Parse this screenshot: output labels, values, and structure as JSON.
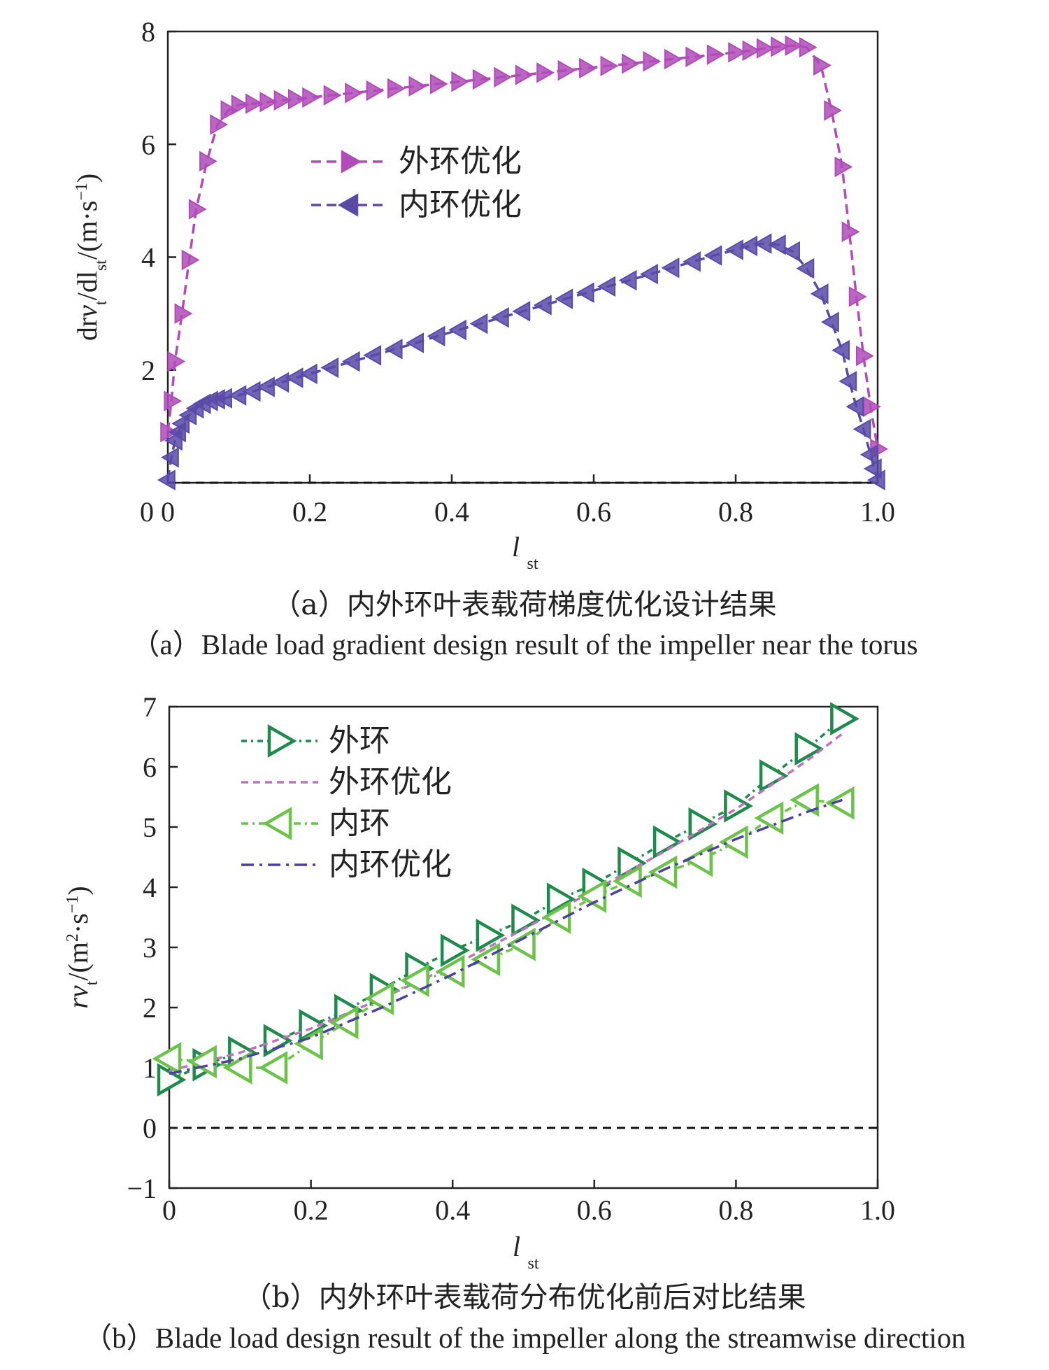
{
  "chart_data": [
    {
      "type": "line",
      "caption_zh": "（a）内外环叶表载荷梯度优化设计结果",
      "caption_en": "（a）Blade load gradient design result of the impeller near the torus",
      "xlabel": "l",
      "xlabel_sub": "st",
      "ylabel": "drv",
      "ylabel_parts": [
        "dr",
        "v",
        "t",
        "/dl",
        "st",
        "/(m·s",
        "−1",
        ")"
      ],
      "xlim": [
        0,
        1.0
      ],
      "ylim": [
        0,
        8
      ],
      "xticks": [
        "0",
        "0.2",
        "0.4",
        "0.6",
        "0.8",
        "1.0"
      ],
      "xtick_values": [
        0,
        0.2,
        0.4,
        0.6,
        0.8,
        1.0
      ],
      "yticks": [
        "2",
        "4",
        "6",
        "8"
      ],
      "ytick_values": [
        2,
        4,
        6,
        8
      ],
      "legend_position": "top-left",
      "series": [
        {
          "name": "外环优化",
          "color": "#b04bb8",
          "marker": "triangle-right",
          "x": [
            0.0,
            0.005,
            0.01,
            0.02,
            0.03,
            0.04,
            0.055,
            0.07,
            0.085,
            0.1,
            0.12,
            0.14,
            0.16,
            0.18,
            0.2,
            0.23,
            0.26,
            0.29,
            0.32,
            0.35,
            0.38,
            0.41,
            0.44,
            0.47,
            0.5,
            0.53,
            0.56,
            0.59,
            0.62,
            0.65,
            0.68,
            0.71,
            0.74,
            0.77,
            0.8,
            0.82,
            0.84,
            0.86,
            0.88,
            0.9,
            0.92,
            0.935,
            0.95,
            0.96,
            0.97,
            0.98,
            0.99,
            1.0
          ],
          "y": [
            0.9,
            1.45,
            2.15,
            3.0,
            3.95,
            4.85,
            5.7,
            6.35,
            6.6,
            6.7,
            6.72,
            6.75,
            6.78,
            6.8,
            6.83,
            6.87,
            6.91,
            6.95,
            6.99,
            7.03,
            7.07,
            7.11,
            7.15,
            7.19,
            7.23,
            7.27,
            7.31,
            7.35,
            7.39,
            7.43,
            7.47,
            7.51,
            7.55,
            7.59,
            7.63,
            7.66,
            7.7,
            7.73,
            7.75,
            7.72,
            7.4,
            6.6,
            5.6,
            4.45,
            3.3,
            2.25,
            1.35,
            0.6
          ]
        },
        {
          "name": "内环优化",
          "color": "#5a4aa8",
          "marker": "triangle-left",
          "x": [
            0.0,
            0.005,
            0.01,
            0.015,
            0.02,
            0.03,
            0.04,
            0.05,
            0.06,
            0.07,
            0.08,
            0.1,
            0.12,
            0.14,
            0.16,
            0.18,
            0.2,
            0.23,
            0.26,
            0.29,
            0.32,
            0.35,
            0.38,
            0.41,
            0.44,
            0.47,
            0.5,
            0.53,
            0.56,
            0.59,
            0.62,
            0.65,
            0.68,
            0.71,
            0.74,
            0.77,
            0.8,
            0.82,
            0.84,
            0.86,
            0.88,
            0.9,
            0.92,
            0.935,
            0.95,
            0.96,
            0.97,
            0.98,
            0.99,
            0.995,
            1.0
          ],
          "y": [
            0.05,
            0.45,
            0.75,
            0.9,
            1.05,
            1.2,
            1.32,
            1.4,
            1.45,
            1.48,
            1.5,
            1.55,
            1.62,
            1.7,
            1.78,
            1.86,
            1.93,
            2.04,
            2.15,
            2.26,
            2.37,
            2.48,
            2.6,
            2.71,
            2.82,
            2.93,
            3.04,
            3.15,
            3.26,
            3.37,
            3.48,
            3.59,
            3.7,
            3.81,
            3.92,
            4.03,
            4.13,
            4.2,
            4.24,
            4.22,
            4.1,
            3.8,
            3.35,
            2.85,
            2.35,
            1.8,
            1.35,
            0.95,
            0.5,
            0.25,
            0.05
          ]
        }
      ]
    },
    {
      "type": "line",
      "caption_zh": "（b）内外环叶表载荷分布优化前后对比结果",
      "caption_en": "（b）Blade load design result of the impeller along the streamwise direction",
      "xlabel": "l",
      "xlabel_sub": "st",
      "ylabel": "rv",
      "ylabel_parts": [
        "r",
        "v",
        "t",
        "/(m",
        "2",
        "·s",
        "−1",
        ")"
      ],
      "xlim": [
        0,
        1.0
      ],
      "ylim": [
        -1,
        7
      ],
      "xticks": [
        "0",
        "0.2",
        "0.4",
        "0.6",
        "0.8",
        "1.0"
      ],
      "xtick_values": [
        0,
        0.2,
        0.4,
        0.6,
        0.8,
        1.0
      ],
      "yticks": [
        "−1",
        "0",
        "1",
        "2",
        "3",
        "4",
        "5",
        "6",
        "7"
      ],
      "ytick_values": [
        -1,
        0,
        1,
        2,
        3,
        4,
        5,
        6,
        7
      ],
      "legend_position": "top-left",
      "series": [
        {
          "name": "外环",
          "color": "#1f8a4c",
          "marker": "triangle-right-large",
          "x": [
            0.0,
            0.05,
            0.1,
            0.15,
            0.2,
            0.25,
            0.3,
            0.35,
            0.4,
            0.45,
            0.5,
            0.55,
            0.6,
            0.65,
            0.7,
            0.75,
            0.8,
            0.85,
            0.9,
            0.95
          ],
          "y": [
            0.8,
            1.05,
            1.25,
            1.45,
            1.7,
            1.95,
            2.3,
            2.65,
            2.95,
            3.2,
            3.45,
            3.8,
            4.05,
            4.4,
            4.75,
            5.05,
            5.35,
            5.85,
            6.3,
            6.8
          ]
        },
        {
          "name": "外环优化",
          "color": "#c070c0",
          "marker": "none",
          "x": [
            0.0,
            0.1,
            0.2,
            0.3,
            0.4,
            0.5,
            0.6,
            0.7,
            0.8,
            0.9,
            0.95
          ],
          "y": [
            0.95,
            1.25,
            1.65,
            2.15,
            2.7,
            3.3,
            3.95,
            4.6,
            5.3,
            6.1,
            6.55
          ]
        },
        {
          "name": "内环",
          "color": "#6cc24a",
          "marker": "triangle-left-large",
          "x": [
            0.0,
            0.05,
            0.1,
            0.15,
            0.2,
            0.25,
            0.3,
            0.35,
            0.4,
            0.45,
            0.5,
            0.55,
            0.6,
            0.65,
            0.7,
            0.75,
            0.8,
            0.85,
            0.9,
            0.95
          ],
          "y": [
            1.15,
            1.1,
            1.0,
            1.0,
            1.4,
            1.75,
            2.15,
            2.45,
            2.6,
            2.8,
            3.05,
            3.5,
            3.85,
            4.1,
            4.25,
            4.45,
            4.75,
            5.15,
            5.45,
            5.4
          ]
        },
        {
          "name": "内环优化",
          "color": "#4b3fa0",
          "marker": "none",
          "x": [
            0.0,
            0.1,
            0.2,
            0.3,
            0.4,
            0.5,
            0.6,
            0.7,
            0.8,
            0.9,
            0.95
          ],
          "y": [
            0.9,
            1.15,
            1.5,
            2.0,
            2.55,
            3.15,
            3.75,
            4.3,
            4.8,
            5.25,
            5.45
          ]
        }
      ]
    }
  ]
}
